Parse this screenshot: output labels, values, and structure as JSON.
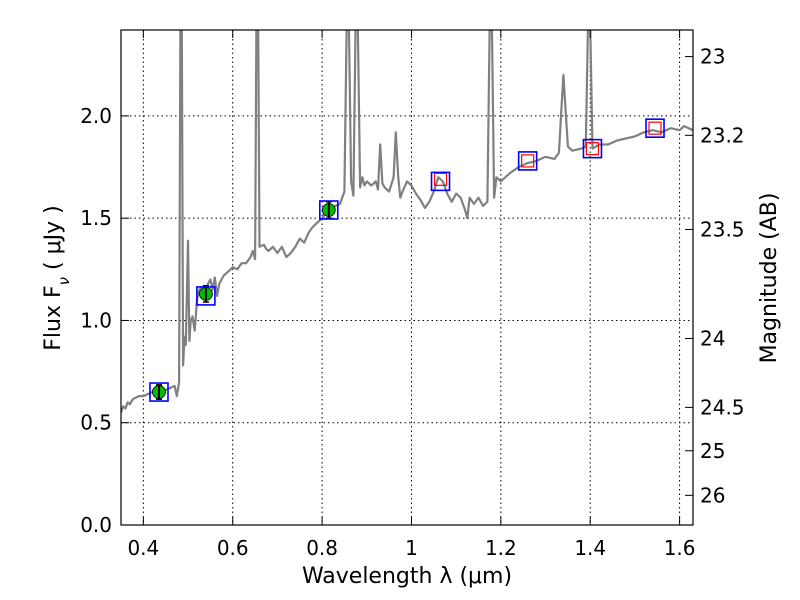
{
  "chart_data": {
    "type": "line",
    "xlabel": "Wavelength  λ (μm)",
    "ylabel_left": "Flux  F",
    "ylabel_left_sub": "ν",
    "ylabel_left_unit": "  ( μJy )",
    "ylabel_right": "Magnitude (AB)",
    "xlim": [
      0.35,
      1.63
    ],
    "ylim": [
      0.0,
      2.42
    ],
    "grid": true,
    "x_ticks": [
      {
        "value": 0.4,
        "label": "0.4"
      },
      {
        "value": 0.6,
        "label": "0.6"
      },
      {
        "value": 0.8,
        "label": "0.8"
      },
      {
        "value": 1.0,
        "label": "1"
      },
      {
        "value": 1.2,
        "label": "1.2"
      },
      {
        "value": 1.4,
        "label": "1.4"
      },
      {
        "value": 1.6,
        "label": "1.6"
      }
    ],
    "y_ticks": [
      {
        "value": 0.0,
        "label": "0.0"
      },
      {
        "value": 0.5,
        "label": "0.5"
      },
      {
        "value": 1.0,
        "label": "1.0"
      },
      {
        "value": 1.5,
        "label": "1.5"
      },
      {
        "value": 2.0,
        "label": "2.0"
      }
    ],
    "right_ticks": [
      {
        "label": "23",
        "flux": 2.29
      },
      {
        "label": "23.2",
        "flux": 1.905
      },
      {
        "label": "23.5",
        "flux": 1.445
      },
      {
        "label": "24",
        "flux": 0.912
      },
      {
        "label": "24.5",
        "flux": 0.575
      },
      {
        "label": "25",
        "flux": 0.363
      },
      {
        "label": "26",
        "flux": 0.145
      }
    ],
    "spectrum": {
      "color": "#808080",
      "points": [
        [
          0.35,
          0.55
        ],
        [
          0.355,
          0.58
        ],
        [
          0.36,
          0.57
        ],
        [
          0.365,
          0.6
        ],
        [
          0.37,
          0.59
        ],
        [
          0.375,
          0.61
        ],
        [
          0.38,
          0.62
        ],
        [
          0.39,
          0.63
        ],
        [
          0.4,
          0.63
        ],
        [
          0.41,
          0.64
        ],
        [
          0.42,
          0.65
        ],
        [
          0.43,
          0.65
        ],
        [
          0.44,
          0.66
        ],
        [
          0.45,
          0.66
        ],
        [
          0.46,
          0.67
        ],
        [
          0.47,
          0.68
        ],
        [
          0.475,
          0.63
        ],
        [
          0.48,
          0.7
        ],
        [
          0.483,
          2.45
        ],
        [
          0.486,
          2.45
        ],
        [
          0.489,
          0.78
        ],
        [
          0.492,
          0.92
        ],
        [
          0.495,
          0.88
        ],
        [
          0.5,
          1.39
        ],
        [
          0.503,
          0.9
        ],
        [
          0.506,
          1.0
        ],
        [
          0.51,
          1.02
        ],
        [
          0.515,
          0.95
        ],
        [
          0.52,
          1.1
        ],
        [
          0.525,
          1.15
        ],
        [
          0.53,
          1.16
        ],
        [
          0.535,
          1.14
        ],
        [
          0.54,
          1.13
        ],
        [
          0.545,
          1.18
        ],
        [
          0.55,
          1.2
        ],
        [
          0.555,
          1.15
        ],
        [
          0.56,
          1.21
        ],
        [
          0.565,
          1.12
        ],
        [
          0.57,
          1.18
        ],
        [
          0.58,
          1.22
        ],
        [
          0.59,
          1.24
        ],
        [
          0.6,
          1.26
        ],
        [
          0.61,
          1.25
        ],
        [
          0.62,
          1.28
        ],
        [
          0.63,
          1.28
        ],
        [
          0.64,
          1.31
        ],
        [
          0.645,
          1.34
        ],
        [
          0.65,
          1.3
        ],
        [
          0.653,
          2.45
        ],
        [
          0.657,
          2.45
        ],
        [
          0.66,
          1.36
        ],
        [
          0.67,
          1.37
        ],
        [
          0.675,
          1.35
        ],
        [
          0.68,
          1.34
        ],
        [
          0.69,
          1.36
        ],
        [
          0.7,
          1.33
        ],
        [
          0.71,
          1.36
        ],
        [
          0.72,
          1.31
        ],
        [
          0.73,
          1.33
        ],
        [
          0.74,
          1.36
        ],
        [
          0.75,
          1.4
        ],
        [
          0.76,
          1.38
        ],
        [
          0.77,
          1.43
        ],
        [
          0.78,
          1.46
        ],
        [
          0.79,
          1.48
        ],
        [
          0.8,
          1.5
        ],
        [
          0.81,
          1.53
        ],
        [
          0.82,
          1.55
        ],
        [
          0.83,
          1.56
        ],
        [
          0.84,
          1.57
        ],
        [
          0.845,
          1.6
        ],
        [
          0.85,
          1.63
        ],
        [
          0.855,
          2.45
        ],
        [
          0.86,
          2.45
        ],
        [
          0.865,
          1.68
        ],
        [
          0.87,
          1.61
        ],
        [
          0.875,
          2.45
        ],
        [
          0.88,
          2.45
        ],
        [
          0.885,
          1.65
        ],
        [
          0.89,
          1.7
        ],
        [
          0.895,
          1.66
        ],
        [
          0.9,
          1.68
        ],
        [
          0.91,
          1.66
        ],
        [
          0.92,
          1.68
        ],
        [
          0.925,
          1.64
        ],
        [
          0.93,
          1.86
        ],
        [
          0.935,
          1.67
        ],
        [
          0.94,
          1.65
        ],
        [
          0.95,
          1.63
        ],
        [
          0.96,
          1.7
        ],
        [
          0.965,
          1.92
        ],
        [
          0.97,
          1.71
        ],
        [
          0.975,
          1.6
        ],
        [
          0.98,
          1.63
        ],
        [
          0.99,
          1.68
        ],
        [
          1.0,
          1.66
        ],
        [
          1.01,
          1.62
        ],
        [
          1.02,
          1.59
        ],
        [
          1.03,
          1.55
        ],
        [
          1.04,
          1.58
        ],
        [
          1.05,
          1.63
        ],
        [
          1.06,
          1.7
        ],
        [
          1.07,
          1.68
        ],
        [
          1.08,
          1.62
        ],
        [
          1.09,
          1.58
        ],
        [
          1.1,
          1.62
        ],
        [
          1.11,
          1.6
        ],
        [
          1.12,
          1.54
        ],
        [
          1.125,
          1.5
        ],
        [
          1.13,
          1.6
        ],
        [
          1.14,
          1.57
        ],
        [
          1.15,
          1.6
        ],
        [
          1.16,
          1.56
        ],
        [
          1.17,
          1.58
        ],
        [
          1.175,
          2.45
        ],
        [
          1.18,
          2.45
        ],
        [
          1.185,
          1.6
        ],
        [
          1.19,
          1.7
        ],
        [
          1.2,
          1.68
        ],
        [
          1.22,
          1.72
        ],
        [
          1.24,
          1.75
        ],
        [
          1.26,
          1.77
        ],
        [
          1.28,
          1.78
        ],
        [
          1.3,
          1.8
        ],
        [
          1.32,
          1.79
        ],
        [
          1.33,
          1.82
        ],
        [
          1.34,
          2.2
        ],
        [
          1.35,
          1.85
        ],
        [
          1.36,
          1.83
        ],
        [
          1.38,
          1.84
        ],
        [
          1.39,
          1.85
        ],
        [
          1.395,
          2.45
        ],
        [
          1.4,
          2.45
        ],
        [
          1.405,
          1.84
        ],
        [
          1.42,
          1.86
        ],
        [
          1.44,
          1.86
        ],
        [
          1.46,
          1.88
        ],
        [
          1.48,
          1.89
        ],
        [
          1.5,
          1.9
        ],
        [
          1.52,
          1.92
        ],
        [
          1.54,
          1.93
        ],
        [
          1.56,
          1.92
        ],
        [
          1.58,
          1.94
        ],
        [
          1.6,
          1.93
        ],
        [
          1.61,
          1.95
        ],
        [
          1.63,
          1.93
        ]
      ]
    },
    "observed_photometry": {
      "color": "#00bb00",
      "points": [
        {
          "x": 0.435,
          "y": 0.65,
          "err": 0.035
        },
        {
          "x": 0.54,
          "y": 1.13,
          "err": 0.04
        },
        {
          "x": 0.815,
          "y": 1.54,
          "err": 0.04
        }
      ]
    },
    "model_photometry": {
      "color": "#0000ff",
      "points": [
        {
          "x": 0.435,
          "y": 0.65
        },
        {
          "x": 0.54,
          "y": 1.12
        },
        {
          "x": 0.815,
          "y": 1.54
        },
        {
          "x": 1.065,
          "y": 1.68
        },
        {
          "x": 1.26,
          "y": 1.78
        },
        {
          "x": 1.405,
          "y": 1.84
        },
        {
          "x": 1.545,
          "y": 1.94
        }
      ]
    },
    "upper_points": {
      "color": "#ff0000",
      "points": [
        {
          "x": 1.065,
          "y": 1.69
        },
        {
          "x": 1.26,
          "y": 1.78
        },
        {
          "x": 1.405,
          "y": 1.84
        },
        {
          "x": 1.545,
          "y": 1.94
        }
      ]
    }
  }
}
